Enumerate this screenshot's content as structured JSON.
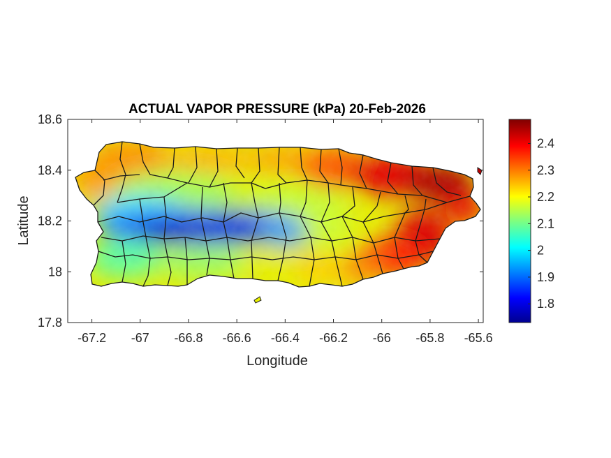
{
  "title": "ACTUAL VAPOR PRESSURE (kPa) 20-Feb-2026",
  "xlabel": "Longitude",
  "ylabel": "Latitude",
  "x_ticks": [
    "-67.2",
    "-67",
    "-66.8",
    "-66.6",
    "-66.4",
    "-66.2",
    "-66",
    "-65.8",
    "-65.6"
  ],
  "y_ticks": [
    "18.6",
    "18.4",
    "18.2",
    "18",
    "17.8"
  ],
  "colorbar": {
    "ticks": [
      "2.4",
      "2.3",
      "2.2",
      "2.1",
      "2",
      "1.9",
      "1.8"
    ],
    "range": [
      1.73,
      2.49
    ],
    "colormap": "jet"
  },
  "map": {
    "region": "Puerto Rico municipalities",
    "variable": "actual vapor pressure (kPa)",
    "date": "20-Feb-2026",
    "lon_range": [
      -67.3,
      -65.58
    ],
    "lat_range": [
      17.8,
      18.6
    ],
    "colors": {
      "low": "#00008f",
      "mid": "#7fff7f",
      "high": "#800000",
      "border": "#1a1a1a"
    }
  },
  "chart_data": {
    "type": "heatmap",
    "title": "ACTUAL VAPOR PRESSURE (kPa) 20-Feb-2026",
    "xlabel": "Longitude",
    "ylabel": "Latitude",
    "xlim": [
      -67.3,
      -65.58
    ],
    "ylim": [
      17.8,
      18.6
    ],
    "clim": [
      1.73,
      2.49
    ],
    "grid": false,
    "colorbar": "right",
    "regional_values": [
      {
        "lon": -67.2,
        "lat": 18.35,
        "value": 2.32
      },
      {
        "lon": -67.1,
        "lat": 18.45,
        "value": 2.3
      },
      {
        "lon": -67.0,
        "lat": 18.45,
        "value": 2.25
      },
      {
        "lon": -66.7,
        "lat": 18.45,
        "value": 2.24
      },
      {
        "lon": -66.4,
        "lat": 18.45,
        "value": 2.28
      },
      {
        "lon": -66.15,
        "lat": 18.42,
        "value": 2.35
      },
      {
        "lon": -65.95,
        "lat": 18.4,
        "value": 2.45
      },
      {
        "lon": -65.75,
        "lat": 18.35,
        "value": 2.47
      },
      {
        "lon": -65.65,
        "lat": 18.22,
        "value": 2.42
      },
      {
        "lon": -65.85,
        "lat": 18.1,
        "value": 2.44
      },
      {
        "lon": -66.0,
        "lat": 18.0,
        "value": 2.38
      },
      {
        "lon": -66.2,
        "lat": 18.25,
        "value": 2.2
      },
      {
        "lon": -66.4,
        "lat": 18.3,
        "value": 2.15
      },
      {
        "lon": -66.9,
        "lat": 18.28,
        "value": 2.1
      },
      {
        "lon": -67.1,
        "lat": 18.2,
        "value": 2.0
      },
      {
        "lon": -66.85,
        "lat": 18.16,
        "value": 1.75
      },
      {
        "lon": -66.55,
        "lat": 18.18,
        "value": 1.8
      },
      {
        "lon": -66.7,
        "lat": 18.2,
        "value": 1.9
      },
      {
        "lon": -66.4,
        "lat": 18.15,
        "value": 2.05
      },
      {
        "lon": -67.1,
        "lat": 18.05,
        "value": 2.08
      },
      {
        "lon": -66.8,
        "lat": 18.0,
        "value": 2.15
      },
      {
        "lon": -66.5,
        "lat": 18.0,
        "value": 2.2
      },
      {
        "lon": -66.3,
        "lat": 17.99,
        "value": 2.25
      },
      {
        "lon": -66.1,
        "lat": 18.1,
        "value": 2.3
      }
    ]
  }
}
